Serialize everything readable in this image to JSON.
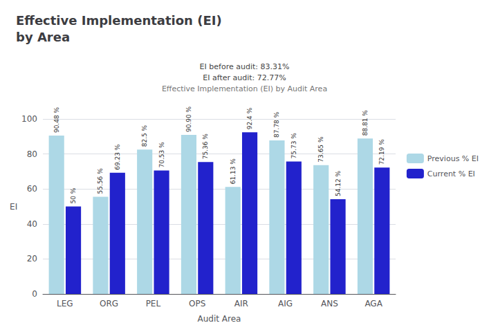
{
  "chart_data": {
    "type": "bar",
    "title": "Effective Implementation (EI)\nby Area",
    "subtitle": "Effective Implementation (EI) by Audit Area",
    "annotations": [
      "EI before audit: 83.31%",
      "EI after audit: 72.77%"
    ],
    "xlabel": "Audit Area",
    "ylabel": "EI",
    "categories": [
      "LEG",
      "ORG",
      "PEL",
      "OPS",
      "AIR",
      "AIG",
      "ANS",
      "AGA"
    ],
    "series": [
      {
        "name": "Previous % EI",
        "color": "#add8e6",
        "values": [
          90.48,
          55.56,
          82.5,
          90.9,
          61.13,
          87.78,
          73.65,
          88.81
        ],
        "value_labels": [
          "90.48 %",
          "55.56 %",
          "82.5 %",
          "90.90 %",
          "61.13 %",
          "87.78 %",
          "73.65 %",
          "88.81 %"
        ]
      },
      {
        "name": "Current % EI",
        "color": "#2222cc",
        "values": [
          50.0,
          69.23,
          70.53,
          75.36,
          92.4,
          75.73,
          54.12,
          72.19
        ],
        "value_labels": [
          "50 %",
          "69.23 %",
          "70.53 %",
          "75.36 %",
          "92.4 %",
          "75.73 %",
          "54.12 %",
          "72.19 %"
        ]
      }
    ],
    "ylim": [
      0,
      100
    ],
    "yticks": [
      0,
      20,
      40,
      60,
      80,
      100
    ],
    "grid": true,
    "legend": "right",
    "data_labels": true
  }
}
